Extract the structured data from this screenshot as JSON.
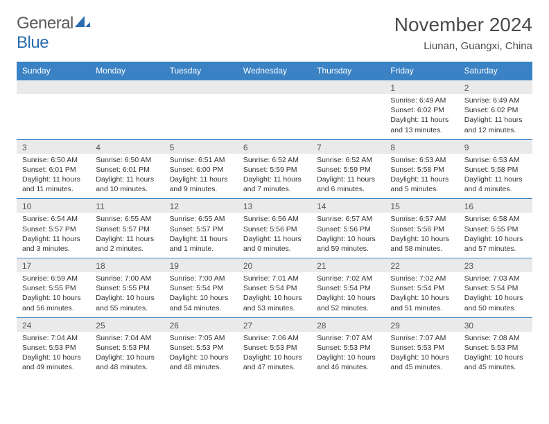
{
  "logo": {
    "part1": "General",
    "part2": "Blue"
  },
  "title": "November 2024",
  "location": "Liunan, Guangxi, China",
  "colors": {
    "header_bg": "#3b82c4",
    "header_text": "#ffffff",
    "date_bg": "#eaeaea",
    "body_bg": "#ffffff",
    "text": "#333333",
    "title_text": "#4a4a4a",
    "logo_gray": "#5a5a5a",
    "logo_blue": "#2a6db0"
  },
  "day_headers": [
    "Sunday",
    "Monday",
    "Tuesday",
    "Wednesday",
    "Thursday",
    "Friday",
    "Saturday"
  ],
  "weeks": [
    [
      null,
      null,
      null,
      null,
      null,
      {
        "date": "1",
        "sunrise": "Sunrise: 6:49 AM",
        "sunset": "Sunset: 6:02 PM",
        "daylight": "Daylight: 11 hours and 13 minutes."
      },
      {
        "date": "2",
        "sunrise": "Sunrise: 6:49 AM",
        "sunset": "Sunset: 6:02 PM",
        "daylight": "Daylight: 11 hours and 12 minutes."
      }
    ],
    [
      {
        "date": "3",
        "sunrise": "Sunrise: 6:50 AM",
        "sunset": "Sunset: 6:01 PM",
        "daylight": "Daylight: 11 hours and 11 minutes."
      },
      {
        "date": "4",
        "sunrise": "Sunrise: 6:50 AM",
        "sunset": "Sunset: 6:01 PM",
        "daylight": "Daylight: 11 hours and 10 minutes."
      },
      {
        "date": "5",
        "sunrise": "Sunrise: 6:51 AM",
        "sunset": "Sunset: 6:00 PM",
        "daylight": "Daylight: 11 hours and 9 minutes."
      },
      {
        "date": "6",
        "sunrise": "Sunrise: 6:52 AM",
        "sunset": "Sunset: 5:59 PM",
        "daylight": "Daylight: 11 hours and 7 minutes."
      },
      {
        "date": "7",
        "sunrise": "Sunrise: 6:52 AM",
        "sunset": "Sunset: 5:59 PM",
        "daylight": "Daylight: 11 hours and 6 minutes."
      },
      {
        "date": "8",
        "sunrise": "Sunrise: 6:53 AM",
        "sunset": "Sunset: 5:58 PM",
        "daylight": "Daylight: 11 hours and 5 minutes."
      },
      {
        "date": "9",
        "sunrise": "Sunrise: 6:53 AM",
        "sunset": "Sunset: 5:58 PM",
        "daylight": "Daylight: 11 hours and 4 minutes."
      }
    ],
    [
      {
        "date": "10",
        "sunrise": "Sunrise: 6:54 AM",
        "sunset": "Sunset: 5:57 PM",
        "daylight": "Daylight: 11 hours and 3 minutes."
      },
      {
        "date": "11",
        "sunrise": "Sunrise: 6:55 AM",
        "sunset": "Sunset: 5:57 PM",
        "daylight": "Daylight: 11 hours and 2 minutes."
      },
      {
        "date": "12",
        "sunrise": "Sunrise: 6:55 AM",
        "sunset": "Sunset: 5:57 PM",
        "daylight": "Daylight: 11 hours and 1 minute."
      },
      {
        "date": "13",
        "sunrise": "Sunrise: 6:56 AM",
        "sunset": "Sunset: 5:56 PM",
        "daylight": "Daylight: 11 hours and 0 minutes."
      },
      {
        "date": "14",
        "sunrise": "Sunrise: 6:57 AM",
        "sunset": "Sunset: 5:56 PM",
        "daylight": "Daylight: 10 hours and 59 minutes."
      },
      {
        "date": "15",
        "sunrise": "Sunrise: 6:57 AM",
        "sunset": "Sunset: 5:56 PM",
        "daylight": "Daylight: 10 hours and 58 minutes."
      },
      {
        "date": "16",
        "sunrise": "Sunrise: 6:58 AM",
        "sunset": "Sunset: 5:55 PM",
        "daylight": "Daylight: 10 hours and 57 minutes."
      }
    ],
    [
      {
        "date": "17",
        "sunrise": "Sunrise: 6:59 AM",
        "sunset": "Sunset: 5:55 PM",
        "daylight": "Daylight: 10 hours and 56 minutes."
      },
      {
        "date": "18",
        "sunrise": "Sunrise: 7:00 AM",
        "sunset": "Sunset: 5:55 PM",
        "daylight": "Daylight: 10 hours and 55 minutes."
      },
      {
        "date": "19",
        "sunrise": "Sunrise: 7:00 AM",
        "sunset": "Sunset: 5:54 PM",
        "daylight": "Daylight: 10 hours and 54 minutes."
      },
      {
        "date": "20",
        "sunrise": "Sunrise: 7:01 AM",
        "sunset": "Sunset: 5:54 PM",
        "daylight": "Daylight: 10 hours and 53 minutes."
      },
      {
        "date": "21",
        "sunrise": "Sunrise: 7:02 AM",
        "sunset": "Sunset: 5:54 PM",
        "daylight": "Daylight: 10 hours and 52 minutes."
      },
      {
        "date": "22",
        "sunrise": "Sunrise: 7:02 AM",
        "sunset": "Sunset: 5:54 PM",
        "daylight": "Daylight: 10 hours and 51 minutes."
      },
      {
        "date": "23",
        "sunrise": "Sunrise: 7:03 AM",
        "sunset": "Sunset: 5:54 PM",
        "daylight": "Daylight: 10 hours and 50 minutes."
      }
    ],
    [
      {
        "date": "24",
        "sunrise": "Sunrise: 7:04 AM",
        "sunset": "Sunset: 5:53 PM",
        "daylight": "Daylight: 10 hours and 49 minutes."
      },
      {
        "date": "25",
        "sunrise": "Sunrise: 7:04 AM",
        "sunset": "Sunset: 5:53 PM",
        "daylight": "Daylight: 10 hours and 48 minutes."
      },
      {
        "date": "26",
        "sunrise": "Sunrise: 7:05 AM",
        "sunset": "Sunset: 5:53 PM",
        "daylight": "Daylight: 10 hours and 48 minutes."
      },
      {
        "date": "27",
        "sunrise": "Sunrise: 7:06 AM",
        "sunset": "Sunset: 5:53 PM",
        "daylight": "Daylight: 10 hours and 47 minutes."
      },
      {
        "date": "28",
        "sunrise": "Sunrise: 7:07 AM",
        "sunset": "Sunset: 5:53 PM",
        "daylight": "Daylight: 10 hours and 46 minutes."
      },
      {
        "date": "29",
        "sunrise": "Sunrise: 7:07 AM",
        "sunset": "Sunset: 5:53 PM",
        "daylight": "Daylight: 10 hours and 45 minutes."
      },
      {
        "date": "30",
        "sunrise": "Sunrise: 7:08 AM",
        "sunset": "Sunset: 5:53 PM",
        "daylight": "Daylight: 10 hours and 45 minutes."
      }
    ]
  ]
}
